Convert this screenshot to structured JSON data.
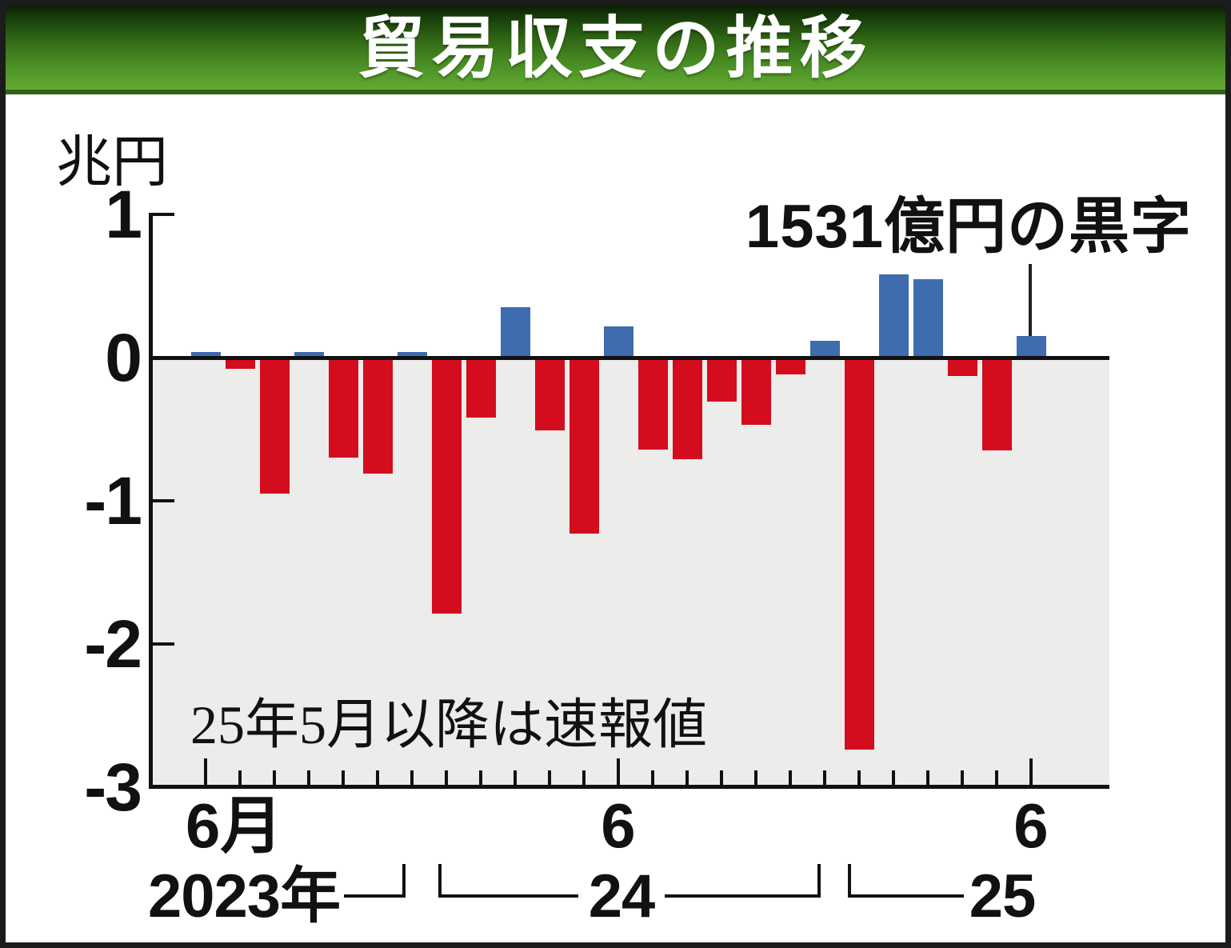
{
  "banner": {
    "title": "貿易収支の推移"
  },
  "y_axis": {
    "unit_label": "兆円",
    "ticks": [
      {
        "label": "1",
        "value": 1,
        "mark": true
      },
      {
        "label": "0",
        "value": 0,
        "mark": false
      },
      {
        "label": "-1",
        "value": -1,
        "mark": true
      },
      {
        "label": "-2",
        "value": -2,
        "mark": true
      },
      {
        "label": "-3",
        "value": -3,
        "mark": false
      }
    ]
  },
  "x_axis": {
    "june_2023_label": "6月",
    "june_2024_label": "6",
    "june_2025_label": "6",
    "year_2023_label": "2023年",
    "year_2024_label": "24",
    "year_2025_label": "25"
  },
  "annotation": {
    "label": "1531億円の黒字"
  },
  "note": "25年5月以降は速報値",
  "colors": {
    "surplus_blue": "#3e6cae",
    "deficit_red": "#d30c1e",
    "plot_bg_gray": "#ececea",
    "banner_green_dark": "#173c0a",
    "banner_green_light": "#64a833"
  },
  "chart_data": {
    "type": "bar",
    "title": "貿易収支の推移",
    "ylabel": "兆円",
    "ylim": [
      -3,
      1
    ],
    "yticks": [
      1,
      0,
      -1,
      -2,
      -3
    ],
    "grid": false,
    "annotation": "1531億円の黒字",
    "note": "25年5月以降は速報値",
    "categories": [
      "2023-06",
      "2023-07",
      "2023-08",
      "2023-09",
      "2023-10",
      "2023-11",
      "2023-12",
      "2024-01",
      "2024-02",
      "2024-03",
      "2024-04",
      "2024-05",
      "2024-06",
      "2024-07",
      "2024-08",
      "2024-09",
      "2024-10",
      "2024-11",
      "2024-12",
      "2025-01",
      "2025-02",
      "2025-03",
      "2025-04",
      "2025-05",
      "2025-06"
    ],
    "values": [
      0.04,
      -0.08,
      -0.95,
      0.04,
      -0.7,
      -0.81,
      0.04,
      -1.79,
      -0.42,
      0.35,
      -0.51,
      -1.23,
      0.22,
      -0.64,
      -0.71,
      -0.31,
      -0.47,
      -0.12,
      0.12,
      -2.74,
      0.58,
      0.55,
      -0.13,
      -0.65,
      0.15
    ],
    "x_major_tick_indices": [
      0,
      12,
      24
    ],
    "x_major_tick_labels": [
      "6月",
      "6",
      "6"
    ],
    "year_group_labels": [
      "2023年",
      "24",
      "25"
    ]
  }
}
